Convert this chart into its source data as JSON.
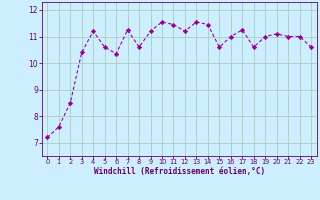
{
  "x": [
    0,
    1,
    2,
    3,
    4,
    5,
    6,
    7,
    8,
    9,
    10,
    11,
    12,
    13,
    14,
    15,
    16,
    17,
    18,
    19,
    20,
    21,
    22,
    23
  ],
  "y": [
    7.2,
    7.6,
    8.5,
    10.4,
    11.2,
    10.6,
    10.35,
    11.25,
    10.6,
    11.2,
    11.55,
    11.45,
    11.2,
    11.55,
    11.45,
    10.6,
    11.0,
    11.25,
    10.6,
    11.0,
    11.1,
    11.0,
    11.0,
    10.6
  ],
  "line_color": "#990099",
  "marker": "D",
  "marker_size": 2.2,
  "bg_color": "#cceeff",
  "grid_color": "#aaccbb",
  "xlabel": "Windchill (Refroidissement éolien,°C)",
  "xlabel_color": "#660066",
  "tick_color": "#660066",
  "ylim": [
    6.5,
    12.3
  ],
  "xlim": [
    -0.5,
    23.5
  ],
  "yticks": [
    7,
    8,
    9,
    10,
    11,
    12
  ],
  "xticks": [
    0,
    1,
    2,
    3,
    4,
    5,
    6,
    7,
    8,
    9,
    10,
    11,
    12,
    13,
    14,
    15,
    16,
    17,
    18,
    19,
    20,
    21,
    22,
    23
  ],
  "xlabel_fontsize": 5.5,
  "xtick_fontsize": 4.8,
  "ytick_fontsize": 5.5
}
